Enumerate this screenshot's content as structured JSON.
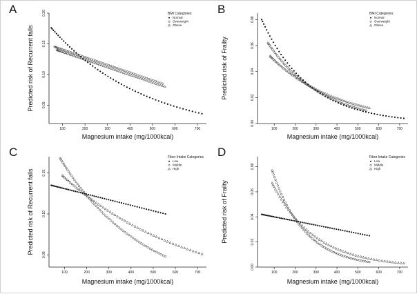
{
  "figure": {
    "panel_labels": [
      "A",
      "B",
      "C",
      "D"
    ]
  },
  "chart_data": [
    {
      "panel": "A",
      "type": "scatter",
      "xlabel": "Magnesium intake (mg/1000kcal)",
      "ylabel": "Predicted risk of Recurrent falls",
      "xlim": [
        40,
        740
      ],
      "ylim": [
        0.02,
        0.2
      ],
      "xticks": [
        100,
        200,
        300,
        400,
        500,
        600,
        700
      ],
      "yticks": [
        0.05,
        0.1,
        0.15,
        0.2
      ],
      "ytick_labels": [
        "0.05",
        "0.10",
        "0.15",
        "0.20"
      ],
      "legend": {
        "title": "BMI Categories",
        "position": "top-right"
      },
      "series": [
        {
          "name": "Normal",
          "marker": "dot",
          "start": 0.176,
          "end": 0.036,
          "x_min": 50,
          "x_max": 720,
          "mode": "exp"
        },
        {
          "name": "Overweight",
          "marker": "circle",
          "start": 0.145,
          "end": 0.085,
          "x_min": 65,
          "x_max": 545,
          "mode": "linear"
        },
        {
          "name": "Obese",
          "marker": "triangle",
          "start": 0.14,
          "end": 0.08,
          "x_min": 75,
          "x_max": 555,
          "mode": "linear"
        }
      ]
    },
    {
      "panel": "B",
      "type": "scatter",
      "xlabel": "Magnesium intake (mg/1000kcal)",
      "ylabel": "Predicted risk of Frailty",
      "xlim": [
        20,
        740
      ],
      "ylim": [
        0.0,
        0.085
      ],
      "xticks": [
        100,
        200,
        300,
        400,
        500,
        600,
        700
      ],
      "yticks": [
        0.0,
        0.02,
        0.04,
        0.06,
        0.08
      ],
      "ytick_labels": [
        "0.00",
        "0.02",
        "0.04",
        "0.06",
        "0.08"
      ],
      "legend": {
        "title": "BMI Categories",
        "position": "top-right"
      },
      "series": [
        {
          "name": "Normal",
          "marker": "dot",
          "start": 0.08,
          "end": 0.004,
          "x_min": 40,
          "x_max": 720,
          "mode": "exp"
        },
        {
          "name": "Overweight",
          "marker": "circle",
          "start": 0.062,
          "end": 0.01,
          "x_min": 70,
          "x_max": 540,
          "mode": "exp"
        },
        {
          "name": "Obese",
          "marker": "triangle",
          "start": 0.052,
          "end": 0.012,
          "x_min": 80,
          "x_max": 555,
          "mode": "exp"
        }
      ]
    },
    {
      "panel": "C",
      "type": "scatter",
      "xlabel": "Magnesium intake (mg/1000kcal)",
      "ylabel": "Predicted risk of Recurrent falls",
      "xlim": [
        30,
        740
      ],
      "ylim": [
        0.035,
        0.17
      ],
      "xticks": [
        100,
        200,
        300,
        400,
        500,
        600,
        700
      ],
      "yticks": [
        0.05,
        0.1,
        0.15
      ],
      "ytick_labels": [
        "0.05",
        "0.10",
        "0.15"
      ],
      "legend": {
        "title": "Fiber Intake Categories",
        "position": "top-right"
      },
      "series": [
        {
          "name": "Low",
          "marker": "dot",
          "start": 0.135,
          "end": 0.1,
          "x_min": 40,
          "x_max": 555,
          "mode": "linear"
        },
        {
          "name": "Middle",
          "marker": "circle",
          "start": 0.168,
          "end": 0.048,
          "x_min": 80,
          "x_max": 555,
          "mode": "exp"
        },
        {
          "name": "High",
          "marker": "triangle",
          "start": 0.147,
          "end": 0.051,
          "x_min": 90,
          "x_max": 720,
          "mode": "exp"
        }
      ]
    },
    {
      "panel": "D",
      "type": "scatter",
      "xlabel": "Magnesium intake (mg/1000kcal)",
      "ylabel": "Predicted risk of Frailty",
      "xlim": [
        20,
        740
      ],
      "ylim": [
        0.0,
        0.088
      ],
      "xticks": [
        100,
        200,
        300,
        400,
        500,
        600,
        700
      ],
      "yticks": [
        0.0,
        0.02,
        0.04,
        0.06,
        0.08
      ],
      "ytick_labels": [
        "0.00",
        "0.02",
        "0.04",
        "0.06",
        "0.08"
      ],
      "legend": {
        "title": "Fiber Intake Categories",
        "position": "top-right"
      },
      "series": [
        {
          "name": "Low",
          "marker": "dot",
          "start": 0.042,
          "end": 0.025,
          "x_min": 40,
          "x_max": 555,
          "mode": "linear"
        },
        {
          "name": "Middle",
          "marker": "circle",
          "start": 0.077,
          "end": 0.004,
          "x_min": 90,
          "x_max": 555,
          "mode": "exp"
        },
        {
          "name": "High",
          "marker": "triangle",
          "start": 0.067,
          "end": 0.003,
          "x_min": 90,
          "x_max": 720,
          "mode": "exp"
        }
      ]
    }
  ]
}
